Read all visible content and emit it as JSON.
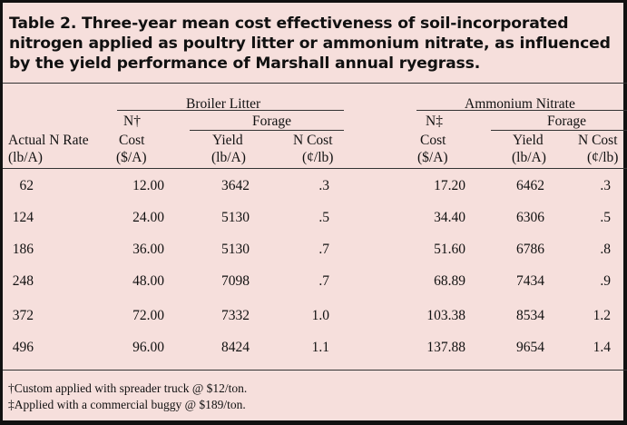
{
  "title": "Table 2.  Three-year mean cost effectiveness of soil-incorporated nitrogen applied as poultry litter or ammonium nitrate, as influenced by the yield performance of Marshall annual ryegrass.",
  "headers": {
    "group1": "Broiler Litter",
    "group2": "Ammonium Nitrate",
    "forage1": "Forage",
    "forage2": "Forage",
    "n1_top": "N†",
    "n1_mid": "Cost",
    "n1_unit": "($/A)",
    "n2_top": "N‡",
    "n2_mid": "Cost",
    "n2_unit": "($/A)",
    "rate_line1": "Actual N Rate",
    "rate_line2": "(lb/A)",
    "yield1": "Yield",
    "yield1_unit": "(lb/A)",
    "ncost1": "N Cost",
    "ncost1_unit": "(¢/lb)",
    "yield2": "Yield",
    "yield2_unit": "(lb/A)",
    "ncost2": "N Cost",
    "ncost2_unit": "(¢/lb)"
  },
  "rows": [
    {
      "rate": "62",
      "bl_cost": "12.00",
      "bl_yield": "3642",
      "bl_ncost": ".3",
      "an_cost": "17.20",
      "an_yield": "6462",
      "an_ncost": ".3"
    },
    {
      "rate": "124",
      "bl_cost": "24.00",
      "bl_yield": "5130",
      "bl_ncost": ".5",
      "an_cost": "34.40",
      "an_yield": "6306",
      "an_ncost": ".5"
    },
    {
      "rate": "186",
      "bl_cost": "36.00",
      "bl_yield": "5130",
      "bl_ncost": ".7",
      "an_cost": "51.60",
      "an_yield": "6786",
      "an_ncost": ".8"
    },
    {
      "rate": "248",
      "bl_cost": "48.00",
      "bl_yield": "7098",
      "bl_ncost": ".7",
      "an_cost": "68.89",
      "an_yield": "7434",
      "an_ncost": ".9"
    },
    {
      "rate": "372",
      "bl_cost": "72.00",
      "bl_yield": "7332",
      "bl_ncost": "1.0",
      "an_cost": "103.38",
      "an_yield": "8534",
      "an_ncost": "1.2"
    },
    {
      "rate": "496",
      "bl_cost": "96.00",
      "bl_yield": "8424",
      "bl_ncost": "1.1",
      "an_cost": "137.88",
      "an_yield": "9654",
      "an_ncost": "1.4"
    }
  ],
  "footnotes": [
    "†Custom applied with spreader truck @ $12/ton.",
    "‡Applied with a commercial buggy @ $189/ton."
  ]
}
